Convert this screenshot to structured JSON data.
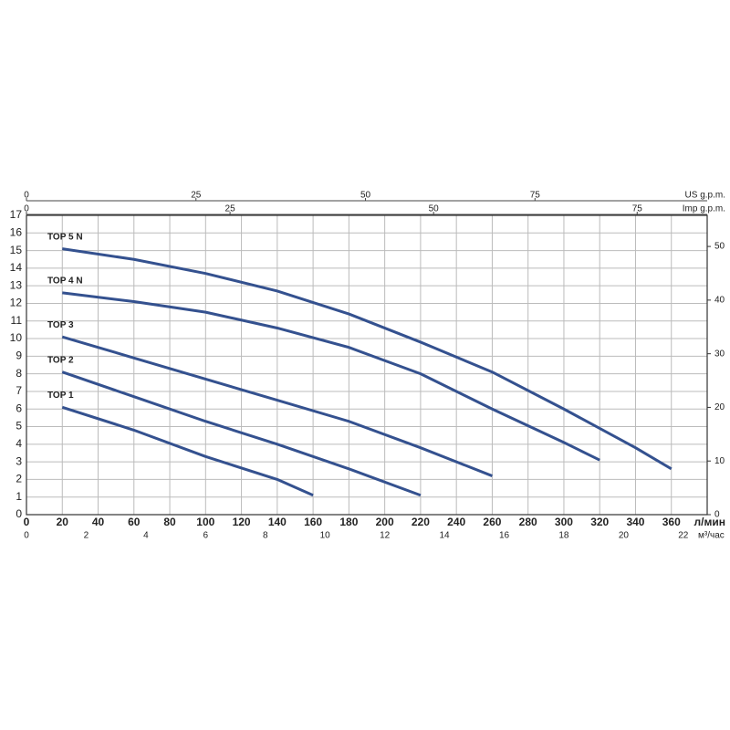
{
  "chart_data": {
    "type": "line",
    "x_label": "л/мин",
    "xlim": [
      0,
      380
    ],
    "xticks": [
      0,
      20,
      40,
      60,
      80,
      100,
      120,
      140,
      160,
      180,
      200,
      220,
      240,
      260,
      280,
      300,
      320,
      340,
      360
    ],
    "ylim": [
      0,
      17
    ],
    "yticks": [
      0,
      1,
      2,
      3,
      4,
      5,
      6,
      7,
      8,
      9,
      10,
      11,
      12,
      13,
      14,
      15,
      16,
      17
    ],
    "y2lim": [
      0,
      55.8
    ],
    "y2ticks": [
      0,
      10,
      20,
      30,
      40,
      50
    ],
    "grid": true,
    "top_axes": [
      {
        "label": "US g.p.m.",
        "xlim": [
          0,
          100.4
        ],
        "xticks": [
          0,
          25,
          50,
          75
        ]
      },
      {
        "label": "Imp g.p.m.",
        "xlim": [
          0,
          83.6
        ],
        "xticks": [
          0,
          25,
          50,
          75
        ]
      }
    ],
    "bottom_axis2": {
      "label": "м³/час",
      "xlim": [
        0,
        22.8
      ],
      "xticks": [
        0,
        2,
        4,
        6,
        8,
        10,
        12,
        14,
        16,
        18,
        20,
        22
      ]
    },
    "series": [
      {
        "name": "TOP 5 N",
        "color": "#34518f",
        "x": [
          20,
          60,
          100,
          140,
          180,
          220,
          260,
          300,
          340,
          360
        ],
        "values": [
          15.1,
          14.5,
          13.7,
          12.7,
          11.4,
          9.8,
          8.1,
          6.0,
          3.8,
          2.6
        ]
      },
      {
        "name": "TOP 4 N",
        "color": "#34518f",
        "x": [
          20,
          60,
          100,
          140,
          180,
          220,
          260,
          300,
          320
        ],
        "values": [
          12.6,
          12.1,
          11.5,
          10.6,
          9.5,
          8.0,
          6.0,
          4.1,
          3.1
        ]
      },
      {
        "name": "TOP 3",
        "color": "#34518f",
        "x": [
          20,
          60,
          100,
          140,
          180,
          220,
          260
        ],
        "values": [
          10.1,
          8.9,
          7.7,
          6.5,
          5.3,
          3.8,
          2.2
        ]
      },
      {
        "name": "TOP 2",
        "color": "#34518f",
        "x": [
          20,
          60,
          100,
          140,
          180,
          220
        ],
        "values": [
          8.1,
          6.7,
          5.3,
          4.0,
          2.6,
          1.1
        ]
      },
      {
        "name": "TOP 1",
        "color": "#34518f",
        "x": [
          20,
          60,
          100,
          140,
          160
        ],
        "values": [
          6.1,
          4.8,
          3.3,
          2.0,
          1.1
        ]
      }
    ]
  }
}
